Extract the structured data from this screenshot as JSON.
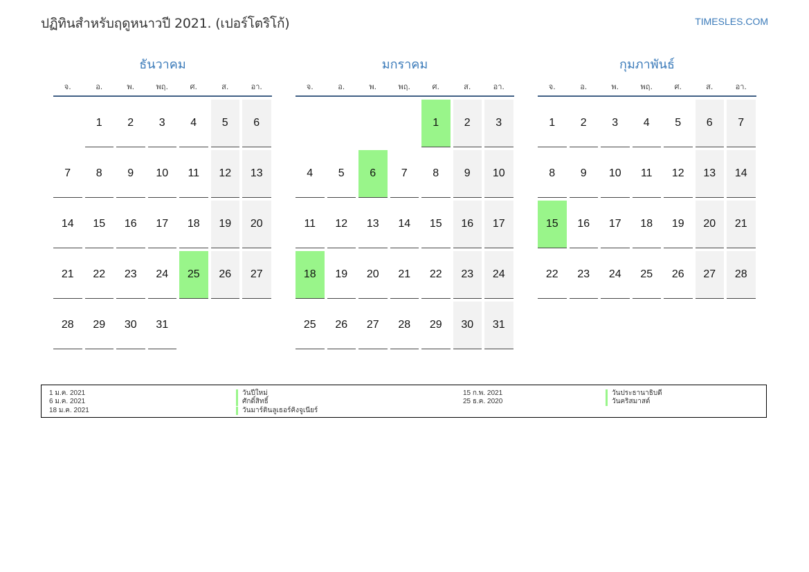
{
  "header": {
    "title": "ปฏิทินสำหรับฤดูหนาวปี 2021. (เปอร์โตริโก้)",
    "site": "TIMESLES.COM"
  },
  "weekdays": [
    "จ.",
    "อ.",
    "พ.",
    "พฤ.",
    "ศ.",
    "ส.",
    "อา."
  ],
  "months": [
    {
      "name": "ธันวาคม",
      "lead_blanks": 1,
      "days": 31,
      "holidays": [
        25
      ]
    },
    {
      "name": "มกราคม",
      "lead_blanks": 4,
      "days": 31,
      "holidays": [
        1,
        6,
        18
      ]
    },
    {
      "name": "กุมภาพันธ์",
      "lead_blanks": 0,
      "days": 28,
      "holidays": [
        15
      ]
    }
  ],
  "colors": {
    "holiday": "#99f58a",
    "weekend": "#f2f2f2",
    "accent": "#3a7ab9",
    "header_rule": "#3f5f84"
  },
  "legend": {
    "left": [
      {
        "date": "1 ม.ค. 2021",
        "name": "วันปีใหม่"
      },
      {
        "date": "6 ม.ค. 2021",
        "name": "ศักดิ์สิทธิ์"
      },
      {
        "date": "18 ม.ค. 2021",
        "name": "วันมาร์ตินลูเธอร์คิงจูเนียร์"
      }
    ],
    "right": [
      {
        "date": "15 ก.พ. 2021",
        "name": "วันประธานาธิบดี"
      },
      {
        "date": "25 ธ.ค. 2020",
        "name": "วันคริสมาสต์"
      }
    ]
  }
}
